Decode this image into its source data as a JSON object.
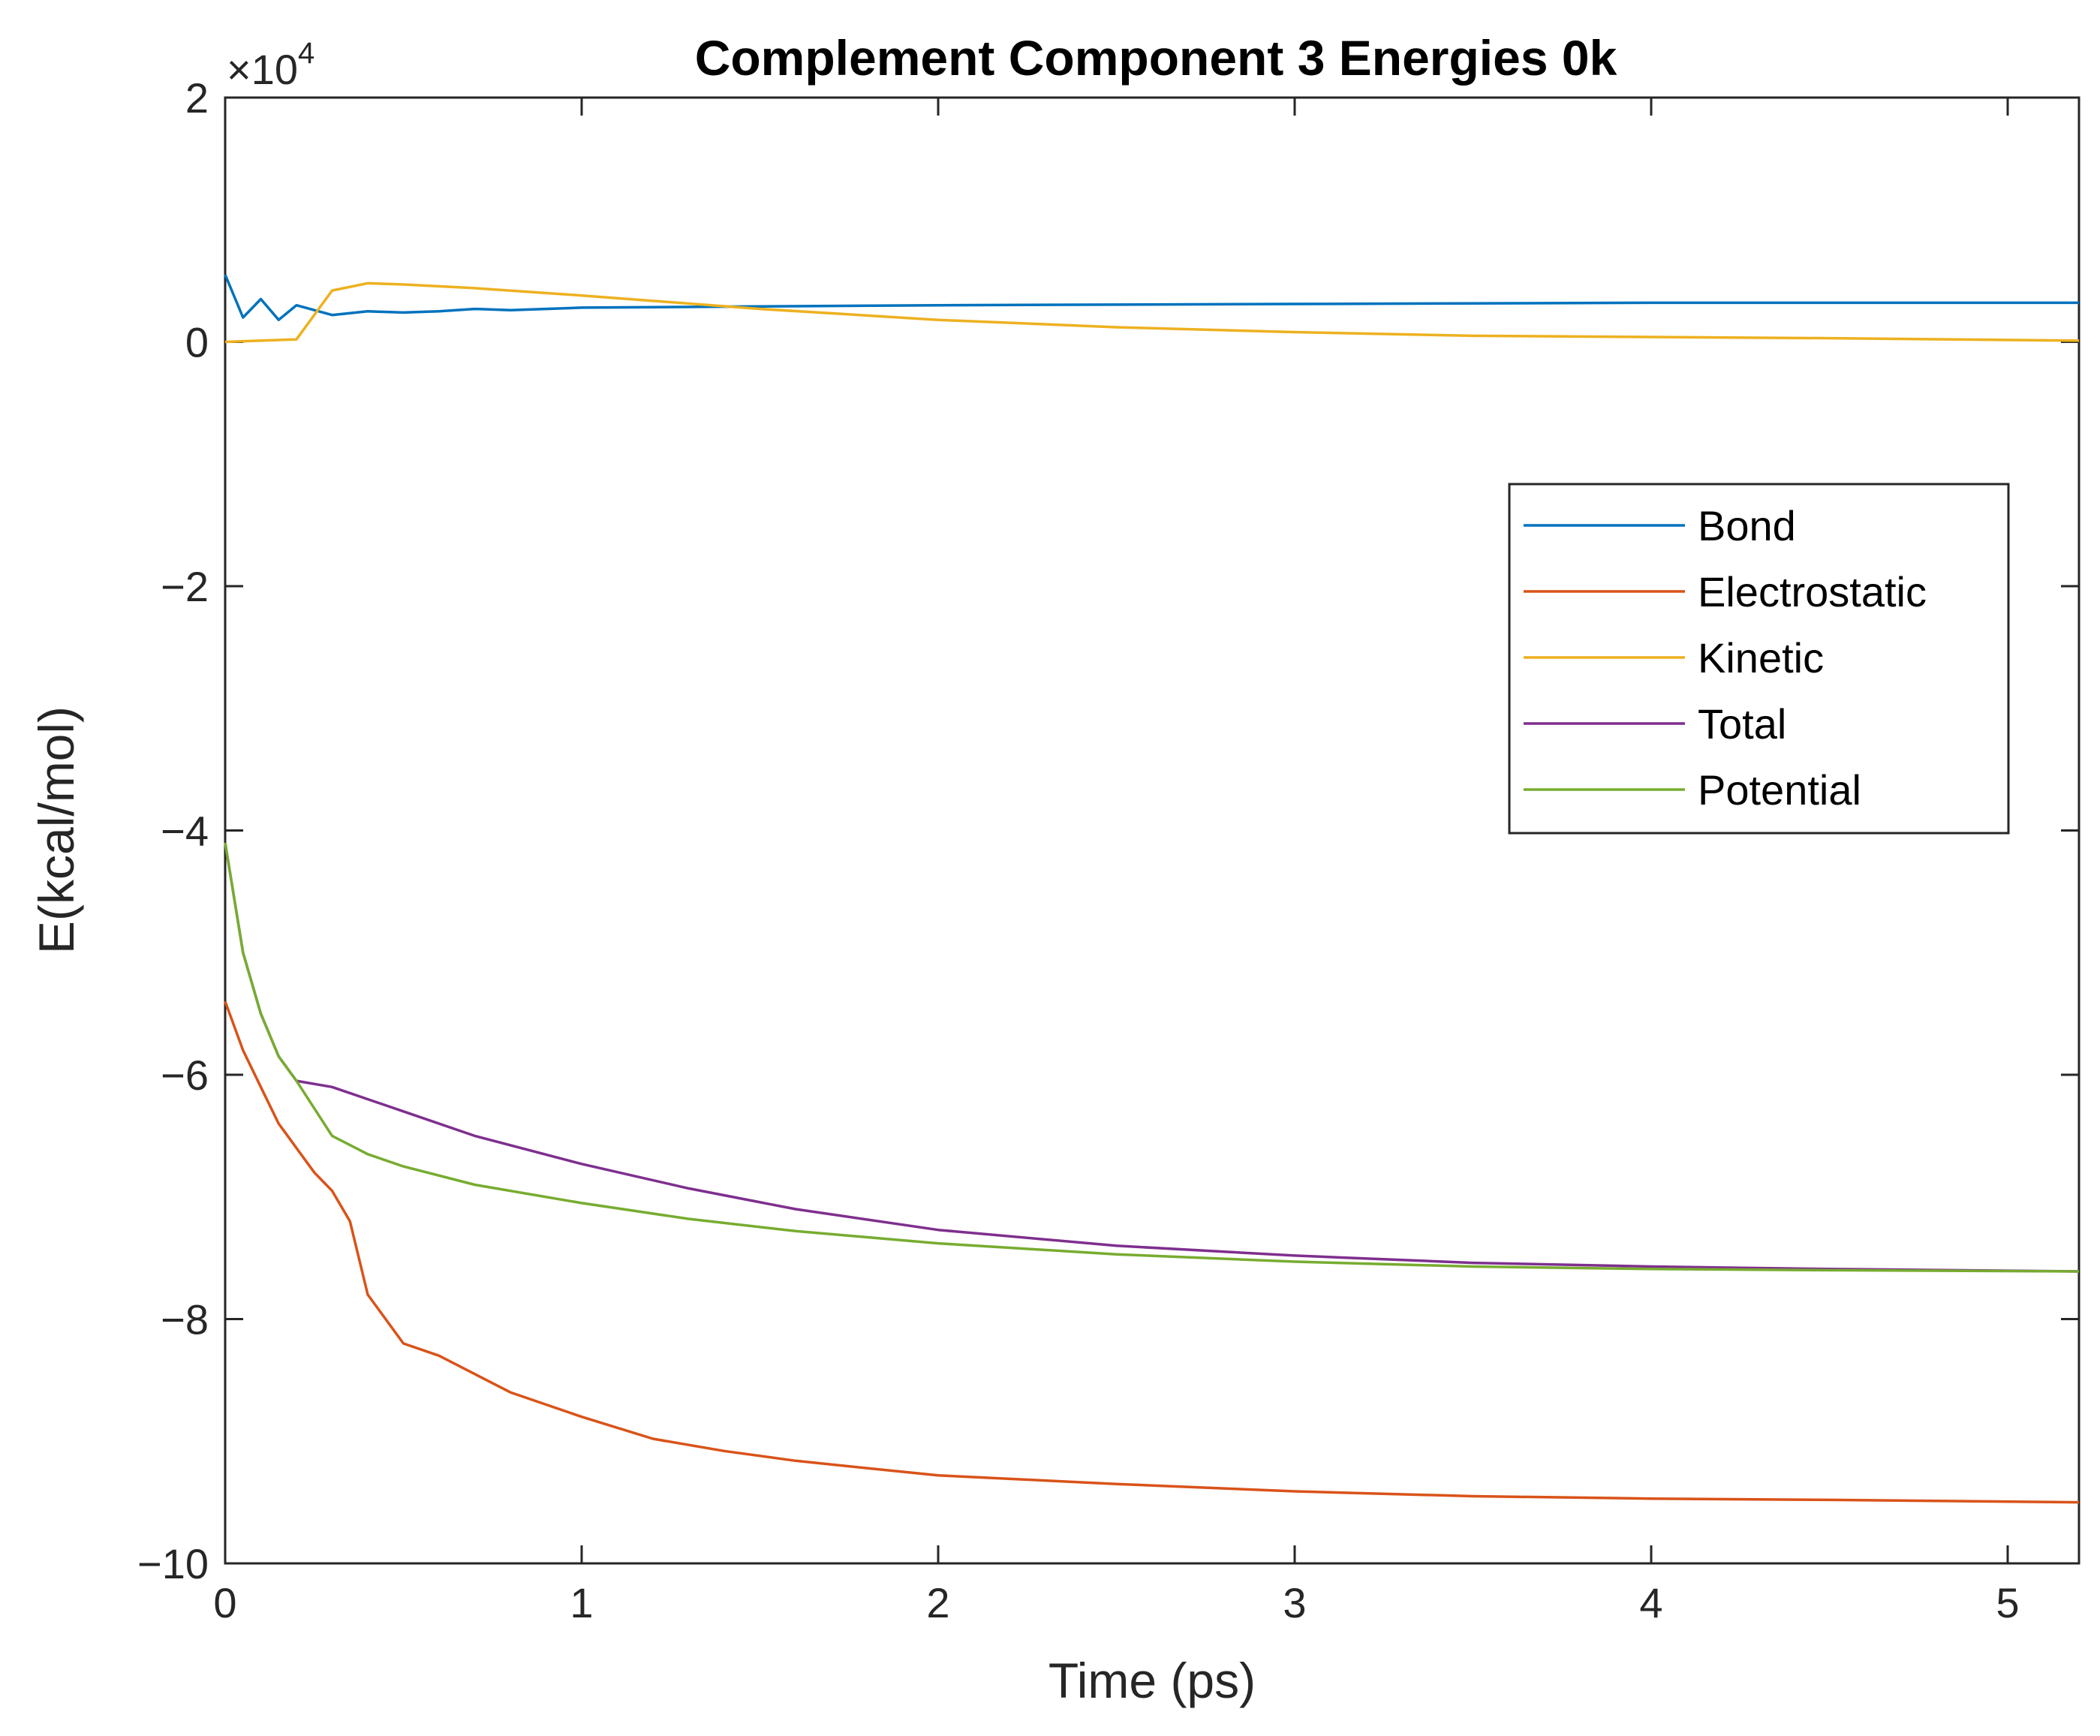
{
  "chart_data": {
    "type": "line",
    "title": "Complement Component 3 Energies 0k",
    "xlabel": "Time (ps)",
    "ylabel": "E(kcal/mol)",
    "xlim": [
      0,
      5.2
    ],
    "ylim": [
      -10,
      2
    ],
    "y_multiplier": "×10",
    "y_multiplier_exponent": "4",
    "x_ticks": [
      0,
      1,
      2,
      3,
      4,
      5
    ],
    "x_tick_labels": [
      "0",
      "1",
      "2",
      "3",
      "4",
      "5"
    ],
    "y_ticks": [
      2,
      0,
      -2,
      -4,
      -6,
      -8,
      -10
    ],
    "y_tick_labels": [
      "2",
      "0",
      "−2",
      "−4",
      "−6",
      "−8",
      "−10"
    ],
    "grid": false,
    "legend_position": "upper-right",
    "series": [
      {
        "name": "Bond",
        "color": "#0072BD",
        "x": [
          0,
          0.05,
          0.1,
          0.15,
          0.2,
          0.3,
          0.4,
          0.5,
          0.6,
          0.7,
          0.8,
          1.0,
          1.5,
          2.0,
          3.0,
          4.0,
          5.2
        ],
        "y": [
          0.55,
          0.2,
          0.35,
          0.18,
          0.3,
          0.22,
          0.25,
          0.24,
          0.25,
          0.27,
          0.26,
          0.28,
          0.29,
          0.3,
          0.31,
          0.32,
          0.32
        ]
      },
      {
        "name": "Electrostatic",
        "color": "#D95319",
        "x": [
          0,
          0.05,
          0.1,
          0.15,
          0.2,
          0.25,
          0.3,
          0.35,
          0.4,
          0.45,
          0.5,
          0.6,
          0.7,
          0.8,
          1.0,
          1.2,
          1.4,
          1.6,
          1.8,
          2.0,
          2.5,
          3.0,
          3.5,
          4.0,
          4.5,
          5.2
        ],
        "y": [
          -5.4,
          -5.8,
          -6.1,
          -6.4,
          -6.6,
          -6.8,
          -6.95,
          -7.2,
          -7.8,
          -8.0,
          -8.2,
          -8.3,
          -8.45,
          -8.6,
          -8.8,
          -8.98,
          -9.08,
          -9.16,
          -9.22,
          -9.28,
          -9.35,
          -9.41,
          -9.45,
          -9.47,
          -9.48,
          -9.5
        ]
      },
      {
        "name": "Kinetic",
        "color": "#EDB120",
        "x": [
          0,
          0.2,
          0.3,
          0.4,
          0.5,
          0.7,
          1.0,
          1.5,
          2.0,
          2.5,
          3.0,
          3.5,
          4.0,
          4.5,
          5.2
        ],
        "y": [
          0,
          0.02,
          0.42,
          0.48,
          0.47,
          0.44,
          0.38,
          0.27,
          0.18,
          0.12,
          0.08,
          0.05,
          0.04,
          0.03,
          0.01
        ]
      },
      {
        "name": "Total",
        "color": "#7E2F8E",
        "x": [
          0,
          0.05,
          0.1,
          0.15,
          0.2,
          0.3,
          0.5,
          0.7,
          1.0,
          1.3,
          1.6,
          2.0,
          2.5,
          3.0,
          3.5,
          4.0,
          4.5,
          5.2
        ],
        "y": [
          -4.1,
          -5.0,
          -5.5,
          -5.85,
          -6.05,
          -6.1,
          -6.3,
          -6.5,
          -6.73,
          -6.93,
          -7.1,
          -7.27,
          -7.4,
          -7.48,
          -7.54,
          -7.57,
          -7.59,
          -7.61
        ]
      },
      {
        "name": "Potential",
        "color": "#77AC30",
        "x": [
          0,
          0.05,
          0.1,
          0.15,
          0.2,
          0.3,
          0.4,
          0.5,
          0.7,
          1.0,
          1.3,
          1.6,
          2.0,
          2.5,
          3.0,
          3.5,
          4.0,
          4.5,
          5.2
        ],
        "y": [
          -4.1,
          -5.0,
          -5.5,
          -5.85,
          -6.05,
          -6.5,
          -6.65,
          -6.75,
          -6.9,
          -7.05,
          -7.18,
          -7.28,
          -7.38,
          -7.47,
          -7.53,
          -7.57,
          -7.59,
          -7.6,
          -7.61
        ]
      }
    ]
  }
}
